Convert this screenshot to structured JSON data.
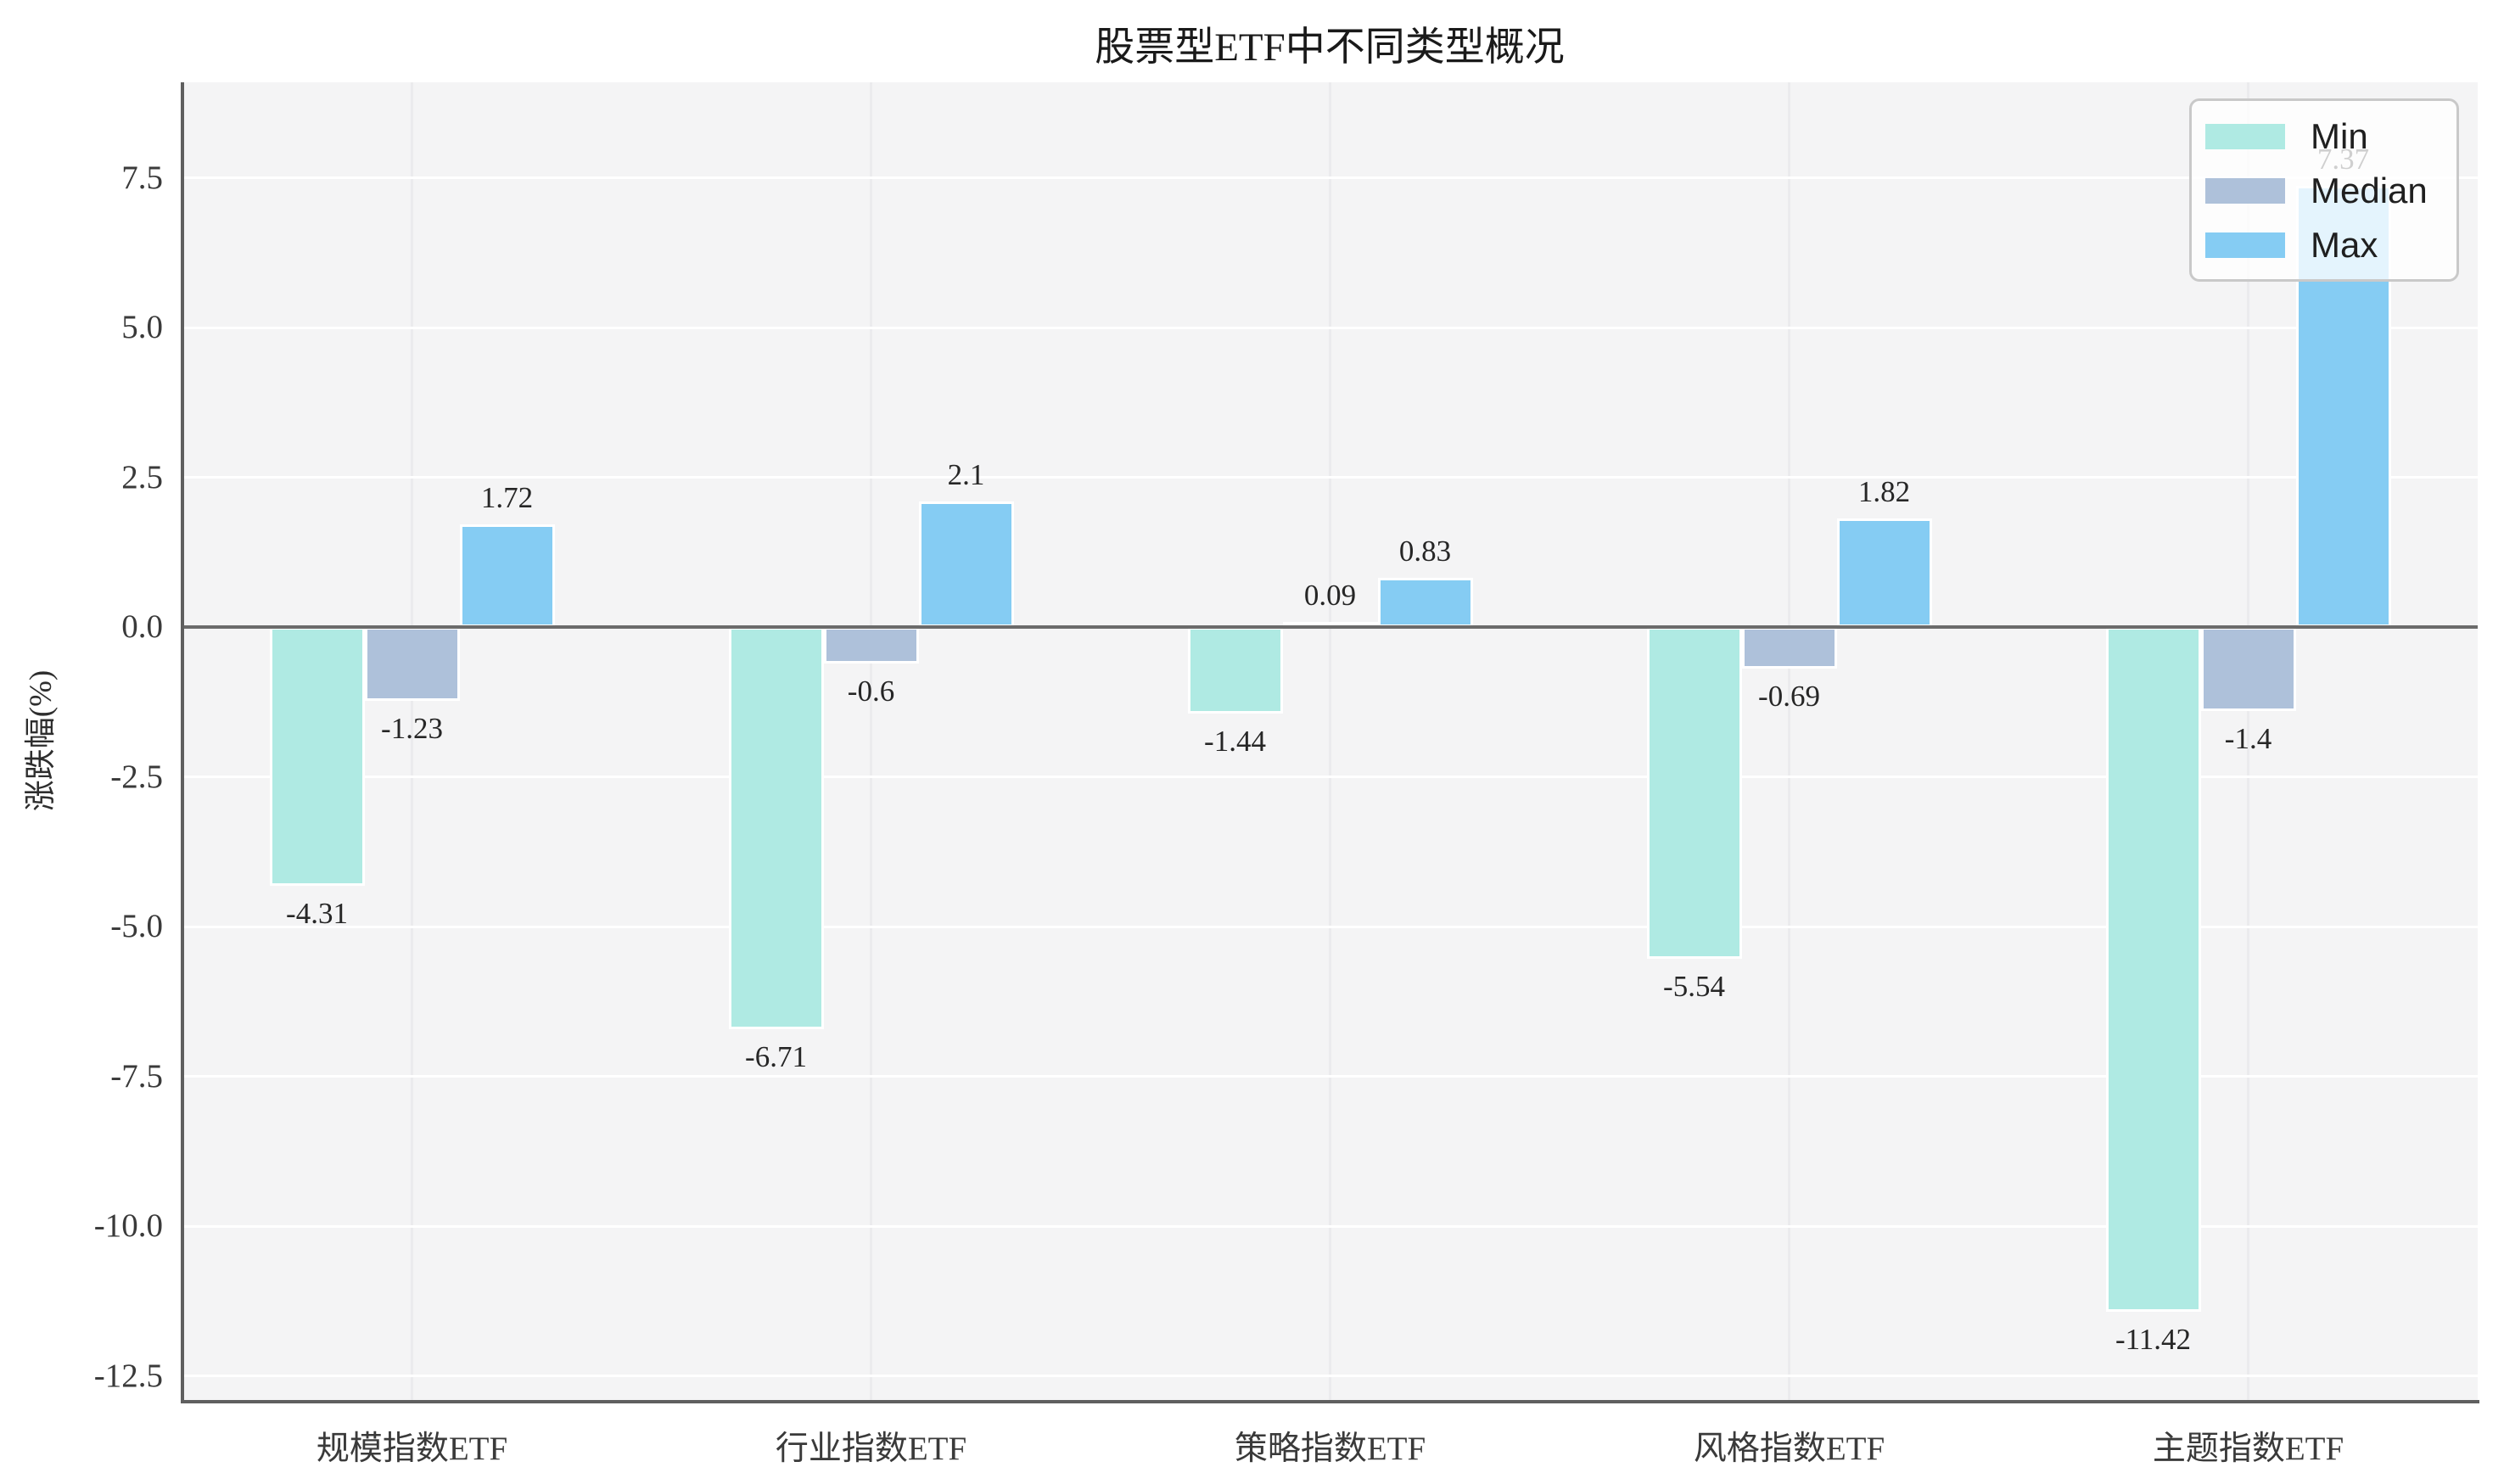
{
  "title": "股票型ETF中不同类型概况",
  "chart_data": {
    "type": "bar",
    "title": "股票型ETF中不同类型概况",
    "xlabel": "",
    "ylabel": "涨跌幅(%)",
    "categories": [
      "规模指数ETF",
      "行业指数ETF",
      "策略指数ETF",
      "风格指数ETF",
      "主题指数ETF"
    ],
    "series": [
      {
        "name": "Min",
        "color": "#afeae3",
        "values": [
          -4.31,
          -6.71,
          -1.44,
          -5.54,
          -11.42
        ]
      },
      {
        "name": "Median",
        "color": "#aec1da",
        "values": [
          -1.23,
          -0.6,
          0.09,
          -0.69,
          -1.4
        ]
      },
      {
        "name": "Max",
        "color": "#85ccf3",
        "values": [
          1.72,
          2.1,
          0.83,
          1.82,
          7.37
        ]
      }
    ],
    "value_labels_shown": true,
    "ylim": [
      -12.9,
      9.1
    ],
    "yticks": [
      "7.5",
      "5.0",
      "2.5",
      "0.0",
      "-2.5",
      "-5.0",
      "-7.5",
      "-10.0",
      "-12.5"
    ],
    "grid": true,
    "legend_position": "upper right",
    "legend_items": [
      "Min",
      "Median",
      "Max"
    ]
  },
  "colors": {
    "plot_background": "#f4f4f5",
    "horizontal_grid": "#ffffff",
    "vertical_grid": "#ebebed",
    "zero_line": "#6b6b6b",
    "axis_spine": "#5f5f5f",
    "bar_edge": "#ffffff",
    "tick_text": "#3a3a3a",
    "title_text": "#1a1a1a"
  }
}
